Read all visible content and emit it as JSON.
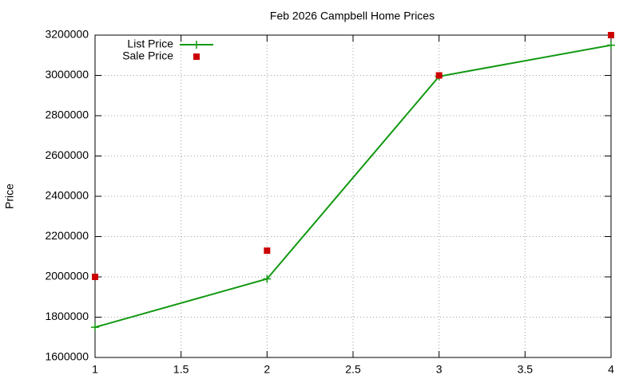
{
  "chart_data": {
    "type": "line",
    "title": "Feb 2026 Campbell Home Prices",
    "y_label": "Price",
    "x": [
      1,
      2,
      3,
      4
    ],
    "series": [
      {
        "name": "List Price",
        "color": "#119911",
        "style": "linespoints",
        "marker": "plus",
        "values": [
          1750000,
          1990000,
          2995000,
          3150000
        ]
      },
      {
        "name": "Sale Price",
        "color": "#cc0000",
        "style": "points",
        "marker": "square",
        "values": [
          2000000,
          2130000,
          3000000,
          3200000
        ]
      }
    ],
    "xlim": [
      1,
      4
    ],
    "xticks": [
      1,
      1.5,
      2,
      2.5,
      3,
      3.5,
      4
    ],
    "ylim": [
      1600000,
      3200000
    ],
    "yticks": [
      1600000,
      1800000,
      2000000,
      2200000,
      2400000,
      2600000,
      2800000,
      3000000,
      3200000
    ],
    "grid": true,
    "legend": "top-left"
  }
}
